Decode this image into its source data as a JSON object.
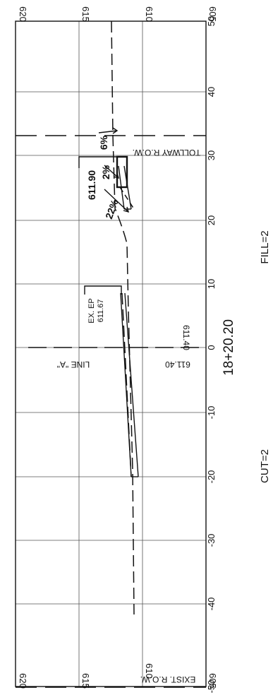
{
  "axis": {
    "elevation_ticks_top": [
      "620",
      "615",
      "610",
      "605"
    ],
    "elevation_ticks_bottom": [
      "620",
      "615",
      "610",
      "605"
    ],
    "offset_ticks": [
      "50",
      "40",
      "30",
      "20",
      "10",
      "0",
      "-10",
      "-20",
      "-30",
      "-40",
      "-50"
    ]
  },
  "labels": {
    "line_a": "LINE \"A\"",
    "tollway_row": "TOLLWAY R.O.W.",
    "exist_row": "EXIST. R.O.W.",
    "centerline_elev_1": "611.40",
    "centerline_elev_2": "611.40",
    "ex_ep_name": "EX. EP",
    "ex_ep_elev": "611.67",
    "proposed_elev": "611.90",
    "slope_6": "6%",
    "slope_2": "2%",
    "slope_22": "22%"
  },
  "footer": {
    "station": "18+20.20",
    "cut": "CUT=2",
    "fill": "FILL=2"
  }
}
